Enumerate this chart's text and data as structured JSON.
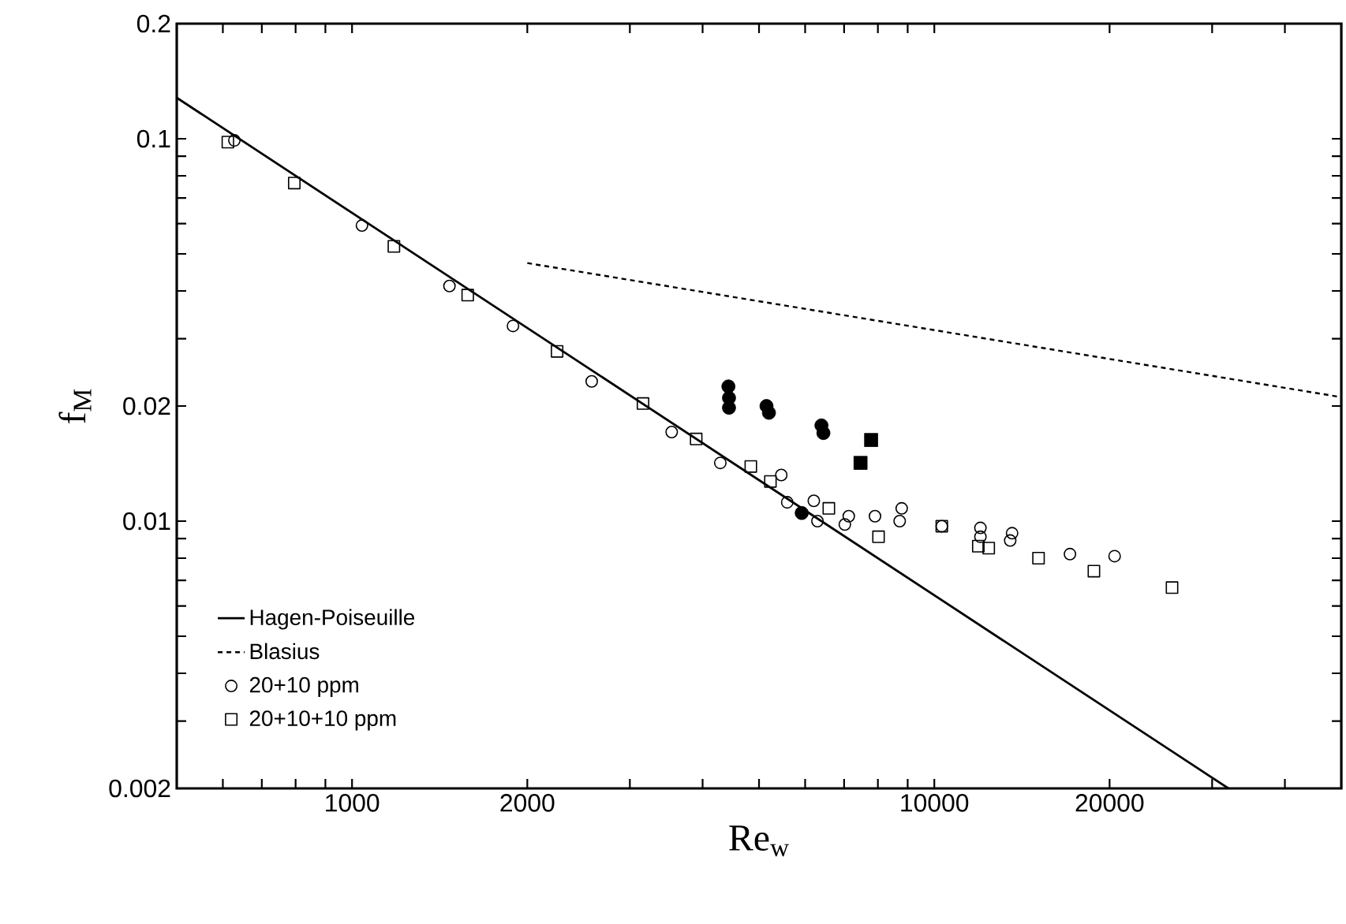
{
  "chart_data": {
    "type": "scatter",
    "xlabel": "Re$_{w}$",
    "ylabel": "f$_{M}$",
    "log": "xy",
    "xlim": [
      500,
      50000
    ],
    "ylim": [
      0.002,
      0.2
    ],
    "xticks": [
      {
        "value": 600,
        "label": null
      },
      {
        "value": 700,
        "label": null
      },
      {
        "value": 800,
        "label": null
      },
      {
        "value": 900,
        "label": null
      },
      1000,
      2000,
      {
        "value": 3000,
        "label": null
      },
      {
        "value": 4000,
        "label": null
      },
      {
        "value": 5000,
        "label": null
      },
      {
        "value": 6000,
        "label": null
      },
      {
        "value": 7000,
        "label": null
      },
      {
        "value": 8000,
        "label": null
      },
      {
        "value": 9000,
        "label": null
      },
      10000,
      20000,
      {
        "value": 30000,
        "label": null
      },
      {
        "value": 40000,
        "label": null
      }
    ],
    "yticks": [
      0.002,
      {
        "value": 0.003,
        "label": null
      },
      {
        "value": 0.004,
        "label": null
      },
      {
        "value": 0.005,
        "label": null
      },
      {
        "value": 0.006,
        "label": null
      },
      {
        "value": 0.007,
        "label": null
      },
      {
        "value": 0.008,
        "label": null
      },
      {
        "value": 0.009,
        "label": null
      },
      0.01,
      0.02,
      {
        "value": 0.03,
        "label": null
      },
      {
        "value": 0.04,
        "label": null
      },
      {
        "value": 0.05,
        "label": null
      },
      {
        "value": 0.06,
        "label": null
      },
      {
        "value": 0.07,
        "label": null
      },
      {
        "value": 0.08,
        "label": null
      },
      {
        "value": 0.09,
        "label": null
      },
      0.1,
      0.2
    ],
    "legend": "bottom left",
    "series": [
      {
        "name": "Hagen-Poiseuille",
        "type": "line",
        "line_style": "solid",
        "marker": "none",
        "color": "#000000",
        "x": [
          500,
          32000
        ],
        "values": [
          0.128,
          0.002
        ]
      },
      {
        "name": "Blasius",
        "type": "line",
        "line_style": "dotted",
        "marker": "none",
        "color": "#000000",
        "x": [
          2000,
          50000
        ],
        "values": [
          0.0473,
          0.0211
        ]
      },
      {
        "name": "20+10 ppm",
        "marker": "circle",
        "color": "#000000",
        "x": [
          628,
          1040,
          1470,
          1890,
          2580,
          3540,
          4290,
          5460,
          5590,
          6210,
          6300,
          7130,
          7020,
          7910,
          8790,
          8720,
          10300,
          12000,
          12000,
          13600,
          13500,
          17100,
          20400
        ],
        "values": [
          0.099,
          0.0593,
          0.0412,
          0.0324,
          0.0232,
          0.0171,
          0.0142,
          0.0132,
          0.0112,
          0.0113,
          0.01,
          0.0103,
          0.0098,
          0.0103,
          0.0108,
          0.01,
          0.0097,
          0.0096,
          0.0091,
          0.0093,
          0.0089,
          0.0082,
          0.0081
        ]
      },
      {
        "name": "20+10+10 ppm",
        "marker": "square",
        "color": "#000000",
        "x": [
          612,
          796,
          1180,
          1580,
          2250,
          3160,
          3900,
          4840,
          5230,
          6590,
          8020,
          10300,
          11900,
          12400,
          15100,
          18800,
          25600
        ],
        "values": [
          0.098,
          0.0766,
          0.0523,
          0.039,
          0.0278,
          0.0203,
          0.0164,
          0.0139,
          0.0127,
          0.0108,
          0.0091,
          0.0097,
          0.0086,
          0.0085,
          0.008,
          0.0074,
          0.0067
        ]
      },
      {
        "marker": "circle",
        "color": "#000000",
        "x": [
          4430,
          4440,
          4440,
          5150,
          5200,
          6400,
          6450,
          5920
        ],
        "values": [
          0.0225,
          0.021,
          0.0198,
          0.02,
          0.0192,
          0.0178,
          0.017,
          0.0105
        ]
      },
      {
        "marker": "square",
        "color": "#000000",
        "x": [
          7790,
          7470
        ],
        "values": [
          0.0163,
          0.0142
        ]
      }
    ]
  }
}
